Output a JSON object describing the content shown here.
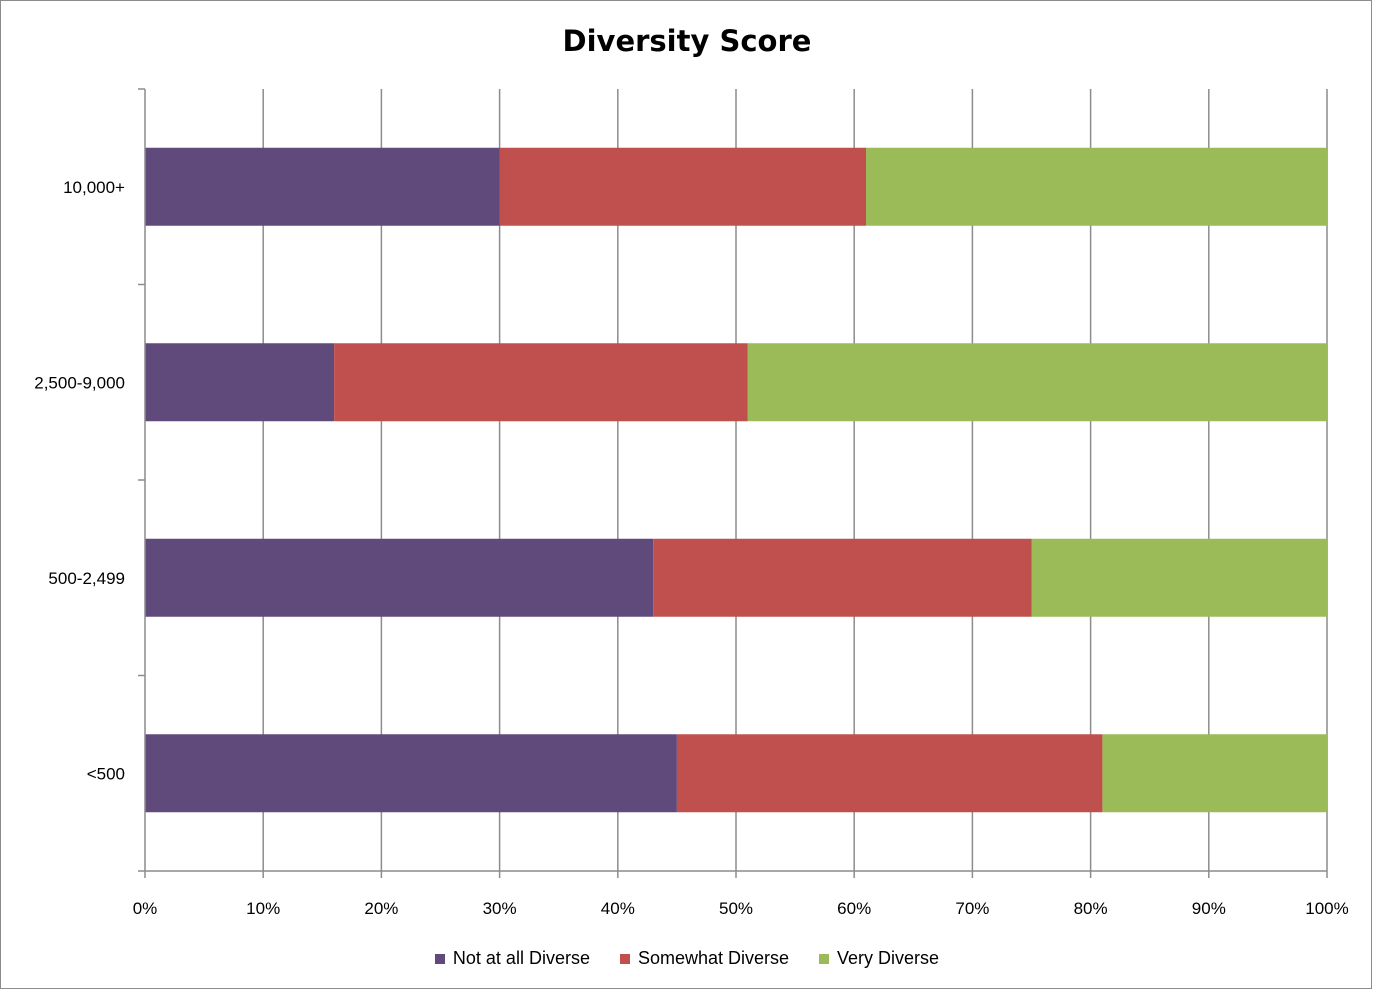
{
  "chart_data": {
    "type": "bar",
    "orientation": "horizontal",
    "stacked": true,
    "title": "Diversity Score",
    "categories": [
      "<500",
      "500-2,499",
      "2,500-9,000",
      "10,000+"
    ],
    "series": [
      {
        "name": "Not at all Diverse",
        "color": "#604a7b",
        "values": [
          45,
          43,
          16,
          30
        ]
      },
      {
        "name": "Somewhat Diverse",
        "color": "#c0504d",
        "values": [
          36,
          32,
          35,
          31
        ]
      },
      {
        "name": "Very Diverse",
        "color": "#9bbb59",
        "values": [
          19,
          25,
          49,
          39
        ]
      }
    ],
    "xlim": [
      0,
      100
    ],
    "x_ticks": [
      "0%",
      "10%",
      "20%",
      "30%",
      "40%",
      "50%",
      "60%",
      "70%",
      "80%",
      "90%",
      "100%"
    ],
    "grid": true,
    "legend_position": "bottom"
  }
}
